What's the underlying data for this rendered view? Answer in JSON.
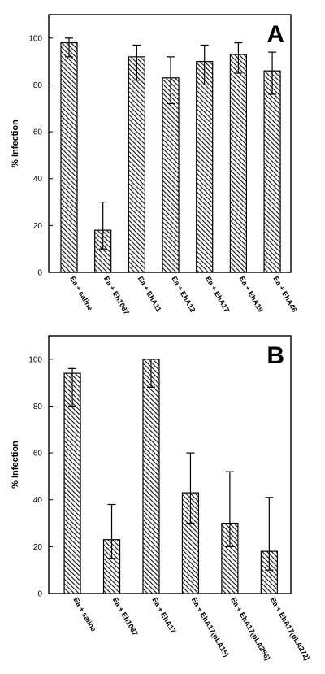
{
  "figure": {
    "panels": [
      {
        "letter": "A",
        "ylabel": "% Infection",
        "yticks": [
          0,
          20,
          40,
          60,
          80,
          100
        ],
        "ylim": [
          0,
          110
        ]
      },
      {
        "letter": "B",
        "ylabel": "% Infection",
        "yticks": [
          0,
          20,
          40,
          60,
          80,
          100
        ],
        "ylim": [
          0,
          110
        ]
      }
    ]
  },
  "chart_data": [
    {
      "type": "bar",
      "title": "A",
      "xlabel": "",
      "ylabel": "% Infection",
      "ylim": [
        0,
        110
      ],
      "grid": false,
      "categories": [
        "Ea + saline",
        "Ea + Eh1087",
        "Ea + EhA11",
        "Ea + EhA12",
        "Ea + EhA17",
        "Ea + EhA19",
        "Ea + EhA46"
      ],
      "values": [
        98,
        18,
        92,
        83,
        90,
        93,
        86
      ],
      "error_low": [
        92,
        10,
        82,
        72,
        80,
        85,
        76
      ],
      "error_high": [
        100,
        30,
        97,
        92,
        97,
        98,
        94
      ],
      "bar_pattern": "diagonal-hatch"
    },
    {
      "type": "bar",
      "title": "B",
      "xlabel": "",
      "ylabel": "% Infection",
      "ylim": [
        0,
        110
      ],
      "grid": false,
      "categories": [
        "Ea + saline",
        "Ea + Eh1087",
        "Ea + EhA17",
        "Ea + EhA17(pLA15)",
        "Ea + EhA17(pLA256)",
        "Ea + EhA17(pLA272)"
      ],
      "values": [
        94,
        23,
        100,
        43,
        30,
        18
      ],
      "error_low": [
        80,
        15,
        88,
        30,
        20,
        10
      ],
      "error_high": [
        96,
        38,
        100,
        60,
        52,
        41
      ],
      "bar_pattern": "diagonal-hatch"
    }
  ]
}
